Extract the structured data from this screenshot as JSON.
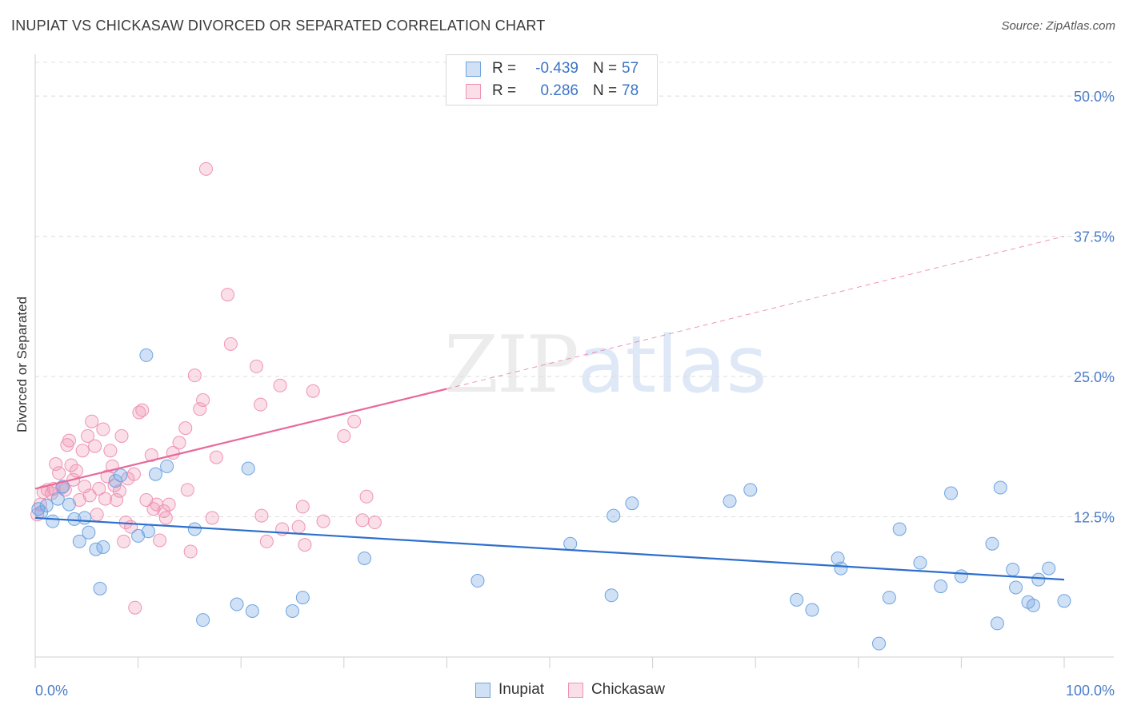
{
  "header": {
    "title": "INUPIAT VS CHICKASAW DIVORCED OR SEPARATED CORRELATION CHART",
    "source": "Source: ZipAtlas.com"
  },
  "watermark": {
    "zip": "ZIP",
    "atlas": "atlas"
  },
  "legend": {
    "rows": [
      {
        "r_label": "R =",
        "r_value": "-0.439",
        "n_label": "N =",
        "n_value": "57",
        "color": "#7fb0e8"
      },
      {
        "r_label": "R =",
        "r_value": "0.286",
        "n_label": "N =",
        "n_value": "78",
        "color": "#f09ab8"
      }
    ]
  },
  "bottom_legend": {
    "inupiat": "Inupiat",
    "chickasaw": "Chickasaw"
  },
  "colors": {
    "inupiat_fill": "rgba(120,170,230,0.35)",
    "inupiat_stroke": "#6ea3e0",
    "inupiat_line": "#2e6fce",
    "chickasaw_fill": "rgba(240,150,180,0.30)",
    "chickasaw_stroke": "#ef93b3",
    "chickasaw_line": "#e8699a",
    "grid": "#dcdcdc",
    "tick_text": "#4a7cc8"
  },
  "chart_data": {
    "type": "scatter",
    "title": "INUPIAT VS CHICKASAW DIVORCED OR SEPARATED CORRELATION CHART",
    "xlabel": "",
    "ylabel": "Divorced or Separated",
    "xlim": [
      0,
      100
    ],
    "ylim": [
      0,
      53
    ],
    "x_tick_labels": [
      "0.0%",
      "100.0%"
    ],
    "y_ticks": [
      12.5,
      25.0,
      37.5,
      50.0
    ],
    "y_tick_labels": [
      "12.5%",
      "25.0%",
      "37.5%",
      "50.0%"
    ],
    "grid": true,
    "legend_position": "top-center",
    "series": [
      {
        "name": "Inupiat",
        "r": -0.439,
        "n": 57,
        "trend": {
          "x": [
            0,
            100
          ],
          "y": [
            12.4,
            6.9
          ]
        },
        "points": [
          [
            0.3,
            13.2
          ],
          [
            0.6,
            12.9
          ],
          [
            1.1,
            13.5
          ],
          [
            1.7,
            12.1
          ],
          [
            2.2,
            14.1
          ],
          [
            2.7,
            15.2
          ],
          [
            3.3,
            13.6
          ],
          [
            3.8,
            12.3
          ],
          [
            4.3,
            10.3
          ],
          [
            4.8,
            12.4
          ],
          [
            5.2,
            11.1
          ],
          [
            5.9,
            9.6
          ],
          [
            6.3,
            6.1
          ],
          [
            6.6,
            9.8
          ],
          [
            7.8,
            15.7
          ],
          [
            8.3,
            16.2
          ],
          [
            10.0,
            10.8
          ],
          [
            11.0,
            11.2
          ],
          [
            11.7,
            16.3
          ],
          [
            10.8,
            26.9
          ],
          [
            12.8,
            17.0
          ],
          [
            15.5,
            11.4
          ],
          [
            16.3,
            3.3
          ],
          [
            19.6,
            4.7
          ],
          [
            21.1,
            4.1
          ],
          [
            20.7,
            16.8
          ],
          [
            25.0,
            4.1
          ],
          [
            26.0,
            5.3
          ],
          [
            32.0,
            8.8
          ],
          [
            43.0,
            6.8
          ],
          [
            52.0,
            10.1
          ],
          [
            56.0,
            5.5
          ],
          [
            56.2,
            12.6
          ],
          [
            58.0,
            13.7
          ],
          [
            67.5,
            13.9
          ],
          [
            69.5,
            14.9
          ],
          [
            74.0,
            5.1
          ],
          [
            75.5,
            4.2
          ],
          [
            78.0,
            8.8
          ],
          [
            78.3,
            7.9
          ],
          [
            82.0,
            1.2
          ],
          [
            83.0,
            5.3
          ],
          [
            84.0,
            11.4
          ],
          [
            86.0,
            8.4
          ],
          [
            88.0,
            6.3
          ],
          [
            89.0,
            14.6
          ],
          [
            90.0,
            7.2
          ],
          [
            93.0,
            10.1
          ],
          [
            93.5,
            3.0
          ],
          [
            93.8,
            15.1
          ],
          [
            95.0,
            7.8
          ],
          [
            95.3,
            6.2
          ],
          [
            96.5,
            4.9
          ],
          [
            97.0,
            4.6
          ],
          [
            97.5,
            6.9
          ],
          [
            98.5,
            7.9
          ],
          [
            100.0,
            5.0
          ]
        ]
      },
      {
        "name": "Chickasaw",
        "r": 0.286,
        "n": 78,
        "trend": {
          "x": [
            0,
            40
          ],
          "y": [
            15.0,
            23.9
          ]
        },
        "trend_dashed": {
          "x": [
            40,
            100
          ],
          "y": [
            23.9,
            37.5
          ]
        },
        "points": [
          [
            0.2,
            12.7
          ],
          [
            0.5,
            13.6
          ],
          [
            0.8,
            14.7
          ],
          [
            1.2,
            14.9
          ],
          [
            1.6,
            14.6
          ],
          [
            1.8,
            15.0
          ],
          [
            2.0,
            17.2
          ],
          [
            2.3,
            16.4
          ],
          [
            2.6,
            15.1
          ],
          [
            2.9,
            14.9
          ],
          [
            3.1,
            18.9
          ],
          [
            3.3,
            19.3
          ],
          [
            3.5,
            17.1
          ],
          [
            3.7,
            15.8
          ],
          [
            4.0,
            16.6
          ],
          [
            4.3,
            14.0
          ],
          [
            4.6,
            18.4
          ],
          [
            4.8,
            15.2
          ],
          [
            5.1,
            19.7
          ],
          [
            5.3,
            14.4
          ],
          [
            5.5,
            21.0
          ],
          [
            5.8,
            18.8
          ],
          [
            6.0,
            12.7
          ],
          [
            6.2,
            15.0
          ],
          [
            6.6,
            20.3
          ],
          [
            6.8,
            14.1
          ],
          [
            7.0,
            16.1
          ],
          [
            7.3,
            18.4
          ],
          [
            7.5,
            17.0
          ],
          [
            7.7,
            15.3
          ],
          [
            7.9,
            14.0
          ],
          [
            8.2,
            14.8
          ],
          [
            8.4,
            19.7
          ],
          [
            8.6,
            10.3
          ],
          [
            8.8,
            12.0
          ],
          [
            9.0,
            15.9
          ],
          [
            9.3,
            11.6
          ],
          [
            9.6,
            16.3
          ],
          [
            9.7,
            4.4
          ],
          [
            10.1,
            21.8
          ],
          [
            10.4,
            22.0
          ],
          [
            10.8,
            14.0
          ],
          [
            11.3,
            18.0
          ],
          [
            11.5,
            13.2
          ],
          [
            11.8,
            13.6
          ],
          [
            12.1,
            10.4
          ],
          [
            12.5,
            13.0
          ],
          [
            12.7,
            12.4
          ],
          [
            13.0,
            13.6
          ],
          [
            13.4,
            18.2
          ],
          [
            14.0,
            19.1
          ],
          [
            14.6,
            20.4
          ],
          [
            14.8,
            14.9
          ],
          [
            15.1,
            9.4
          ],
          [
            15.5,
            25.1
          ],
          [
            16.0,
            22.1
          ],
          [
            16.3,
            22.9
          ],
          [
            16.6,
            43.5
          ],
          [
            17.2,
            12.4
          ],
          [
            17.6,
            17.8
          ],
          [
            18.7,
            32.3
          ],
          [
            19.0,
            27.9
          ],
          [
            21.5,
            25.9
          ],
          [
            21.9,
            22.5
          ],
          [
            22.0,
            12.6
          ],
          [
            22.5,
            10.3
          ],
          [
            23.8,
            24.2
          ],
          [
            24.0,
            11.4
          ],
          [
            25.6,
            11.6
          ],
          [
            26.0,
            13.4
          ],
          [
            26.2,
            10.0
          ],
          [
            27.0,
            23.7
          ],
          [
            28.0,
            12.1
          ],
          [
            30.0,
            19.7
          ],
          [
            31.0,
            21.0
          ],
          [
            31.8,
            12.2
          ],
          [
            32.2,
            14.3
          ],
          [
            33.0,
            12.0
          ]
        ]
      }
    ]
  }
}
